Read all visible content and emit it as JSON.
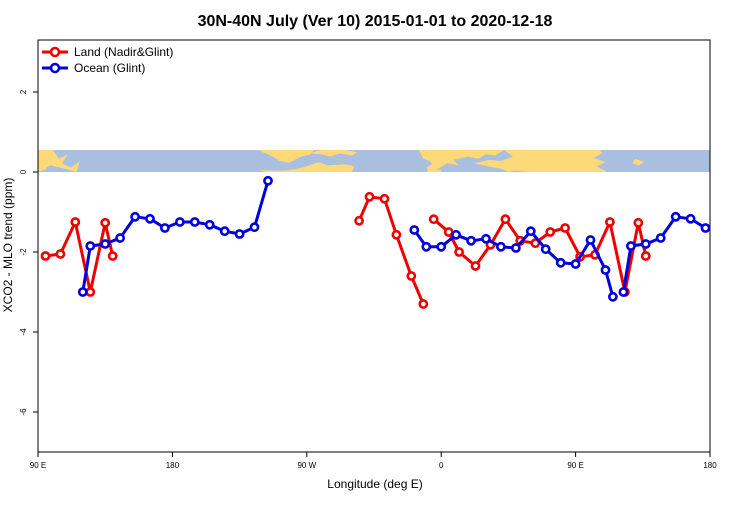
{
  "chart_data": {
    "type": "line",
    "title": "30N-40N July (Ver 10)   2015-01-01 to 2020-12-18",
    "xlabel": "Longitude (deg E)",
    "ylabel": "XCO2 - MLO trend (ppm)",
    "xlim": [
      90,
      540
    ],
    "ylim": [
      -7,
      3.3
    ],
    "x_ticks": [
      {
        "value": 90,
        "label": "90 E"
      },
      {
        "value": 180,
        "label": "180"
      },
      {
        "value": 270,
        "label": "90 W"
      },
      {
        "value": 360,
        "label": "0"
      },
      {
        "value": 450,
        "label": "90 E"
      },
      {
        "value": 540,
        "label": "180"
      }
    ],
    "y_ticks": [
      {
        "value": 2,
        "label": "2"
      },
      {
        "value": 0,
        "label": "0"
      },
      {
        "value": -2,
        "label": "-2"
      },
      {
        "value": -4,
        "label": "-4"
      },
      {
        "value": -6,
        "label": "-6"
      }
    ],
    "map_band": {
      "ymin": 0,
      "ymax": 0.55,
      "ocean_color": "#a8bfdf",
      "land_color": "#fdd97a"
    },
    "legend_position": "top-left",
    "grid": false,
    "series": [
      {
        "name": "Land (Nadir&Glint)",
        "color": "#ee0000",
        "segments": [
          [
            [
              95,
              -2.1
            ],
            [
              105,
              -2.05
            ],
            [
              115,
              -1.25
            ],
            [
              125,
              -3.0
            ],
            [
              135,
              -1.27
            ],
            [
              140,
              -2.1
            ]
          ],
          [
            [
              305,
              -1.22
            ],
            [
              312,
              -0.62
            ],
            [
              322,
              -0.67
            ],
            [
              330,
              -1.57
            ],
            [
              340,
              -2.6
            ],
            [
              348,
              -3.3
            ]
          ],
          [
            [
              355,
              -1.18
            ],
            [
              365,
              -1.5
            ],
            [
              372,
              -2.0
            ],
            [
              383,
              -2.35
            ],
            [
              393,
              -1.82
            ],
            [
              403,
              -1.18
            ],
            [
              413,
              -1.72
            ],
            [
              423,
              -1.78
            ],
            [
              433,
              -1.5
            ],
            [
              443,
              -1.4
            ],
            [
              453,
              -2.12
            ],
            [
              463,
              -2.07
            ],
            [
              473,
              -1.25
            ],
            [
              483,
              -3.0
            ],
            [
              492,
              -1.27
            ],
            [
              497,
              -2.1
            ]
          ]
        ]
      },
      {
        "name": "Ocean (Glint)",
        "color": "#0000dd",
        "segments": [
          [
            [
              120,
              -3.0
            ],
            [
              125,
              -1.85
            ],
            [
              135,
              -1.8
            ],
            [
              145,
              -1.65
            ],
            [
              155,
              -1.12
            ],
            [
              165,
              -1.17
            ],
            [
              175,
              -1.4
            ],
            [
              185,
              -1.25
            ],
            [
              195,
              -1.25
            ],
            [
              205,
              -1.32
            ],
            [
              215,
              -1.48
            ],
            [
              225,
              -1.55
            ],
            [
              235,
              -1.38
            ],
            [
              244,
              -0.22
            ]
          ],
          [
            [
              342,
              -1.45
            ],
            [
              350,
              -1.87
            ],
            [
              360,
              -1.87
            ],
            [
              370,
              -1.57
            ],
            [
              380,
              -1.72
            ],
            [
              390,
              -1.67
            ],
            [
              400,
              -1.87
            ],
            [
              410,
              -1.9
            ],
            [
              420,
              -1.48
            ],
            [
              430,
              -1.93
            ],
            [
              440,
              -2.27
            ],
            [
              450,
              -2.3
            ],
            [
              460,
              -1.7
            ],
            [
              470,
              -2.45
            ],
            [
              475,
              -3.12
            ]
          ],
          [
            [
              482,
              -3.0
            ],
            [
              487,
              -1.85
            ],
            [
              497,
              -1.8
            ],
            [
              507,
              -1.65
            ],
            [
              517,
              -1.12
            ],
            [
              527,
              -1.17
            ],
            [
              537,
              -1.4
            ]
          ]
        ]
      }
    ]
  }
}
